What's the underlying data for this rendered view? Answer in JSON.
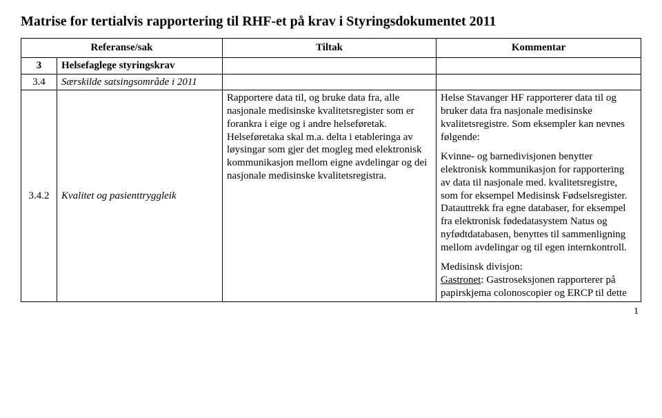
{
  "title": "Matrise for tertialvis rapportering til RHF-et på krav i Styringsdokumentet 2011",
  "headers": {
    "ref": "Referanse/sak",
    "tiltak": "Tiltak",
    "kommentar": "Kommentar"
  },
  "section": {
    "num": "3",
    "label": "Helsefaglege styringskrav"
  },
  "row1": {
    "num": "3.4",
    "ref_italic": "Særskilde satsingsområde i 2011"
  },
  "row2": {
    "num": "3.4.2",
    "ref_italic": "Kvalitet og pasienttryggleik",
    "tiltak": "Rapportere data til, og bruke data fra, alle nasjonale medisinske kvalitetsregister som er forankra i eige og i andre helseføretak. Helseføretaka skal m.a. delta i etableringa av løysingar som gjer det mogleg med elektronisk kommunikasjon mellom eigne avdelingar og dei nasjonale medisinske kvalitetsregistra.",
    "komm_p1": "Helse Stavanger HF rapporterer data til og bruker data fra nasjonale medisinske kvalitetsregistre. Som eksempler kan nevnes følgende:",
    "komm_p2": "Kvinne- og barnedivisjonen benytter elektronisk kommunikasjon for rapportering av data til nasjonale med. kvalitetsregistre, som for eksempel Medisinsk Fødselsregister. Datauttrekk fra egne databaser, for eksempel fra elektronisk fødedatasystem Natus og nyfødtdatabasen, benyttes til sammenligning mellom avdelingar og til egen internkontroll.",
    "komm_p3_label": "Medisinsk divisjon:",
    "komm_p3_underlined": "Gastronet",
    "komm_p3_rest": ": Gastroseksjonen rapporterer på papirskjema colonoscopier og ERCP til dette"
  },
  "page_number": "1"
}
